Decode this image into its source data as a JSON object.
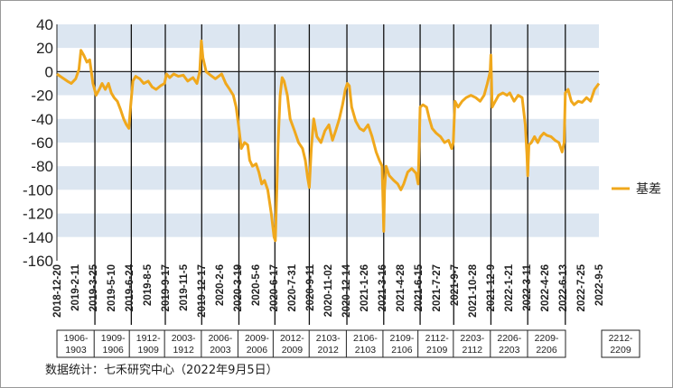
{
  "chart_data": {
    "type": "line",
    "series": [
      {
        "name": "基差",
        "color": "#F0A81C",
        "points": [
          [
            "2018-12-20",
            -2
          ],
          [
            "2019-01-02",
            -5
          ],
          [
            "2019-01-15",
            -8
          ],
          [
            "2019-01-25",
            -10
          ],
          [
            "2019-02-05",
            -6
          ],
          [
            "2019-02-13",
            2
          ],
          [
            "2019-02-18",
            18
          ],
          [
            "2019-02-25",
            14
          ],
          [
            "2019-03-05",
            8
          ],
          [
            "2019-03-12",
            10
          ],
          [
            "2019-03-20",
            -10
          ],
          [
            "2019-03-28",
            -20
          ],
          [
            "2019-04-05",
            -15
          ],
          [
            "2019-04-12",
            -10
          ],
          [
            "2019-04-20",
            -15
          ],
          [
            "2019-04-28",
            -10
          ],
          [
            "2019-05-05",
            -18
          ],
          [
            "2019-05-12",
            -22
          ],
          [
            "2019-05-20",
            -25
          ],
          [
            "2019-05-28",
            -32
          ],
          [
            "2019-06-05",
            -40
          ],
          [
            "2019-06-12",
            -45
          ],
          [
            "2019-06-18",
            -48
          ],
          [
            "2019-06-22",
            -30
          ],
          [
            "2019-06-28",
            -8
          ],
          [
            "2019-07-05",
            -4
          ],
          [
            "2019-07-15",
            -6
          ],
          [
            "2019-07-25",
            -10
          ],
          [
            "2019-08-05",
            -8
          ],
          [
            "2019-08-15",
            -13
          ],
          [
            "2019-08-25",
            -15
          ],
          [
            "2019-09-05",
            -12
          ],
          [
            "2019-09-15",
            -10
          ],
          [
            "2019-09-20",
            -2
          ],
          [
            "2019-09-28",
            -5
          ],
          [
            "2019-10-08",
            -2
          ],
          [
            "2019-10-20",
            -4
          ],
          [
            "2019-11-01",
            -3
          ],
          [
            "2019-11-12",
            -8
          ],
          [
            "2019-11-25",
            -5
          ],
          [
            "2019-12-05",
            -10
          ],
          [
            "2019-12-12",
            0
          ],
          [
            "2019-12-16",
            26
          ],
          [
            "2019-12-20",
            12
          ],
          [
            "2019-12-28",
            0
          ],
          [
            "2020-01-08",
            -3
          ],
          [
            "2020-01-20",
            -6
          ],
          [
            "2020-02-05",
            -2
          ],
          [
            "2020-02-15",
            -10
          ],
          [
            "2020-02-25",
            -15
          ],
          [
            "2020-03-05",
            -20
          ],
          [
            "2020-03-12",
            -30
          ],
          [
            "2020-03-18",
            -45
          ],
          [
            "2020-03-25",
            -65
          ],
          [
            "2020-04-02",
            -60
          ],
          [
            "2020-04-10",
            -62
          ],
          [
            "2020-04-15",
            -75
          ],
          [
            "2020-04-22",
            -80
          ],
          [
            "2020-05-01",
            -78
          ],
          [
            "2020-05-08",
            -85
          ],
          [
            "2020-05-15",
            -95
          ],
          [
            "2020-05-22",
            -92
          ],
          [
            "2020-05-30",
            -100
          ],
          [
            "2020-06-08",
            -120
          ],
          [
            "2020-06-15",
            -140
          ],
          [
            "2020-06-18",
            -143
          ],
          [
            "2020-06-25",
            -60
          ],
          [
            "2020-06-30",
            -20
          ],
          [
            "2020-07-05",
            -5
          ],
          [
            "2020-07-10",
            -8
          ],
          [
            "2020-07-18",
            -20
          ],
          [
            "2020-07-25",
            -40
          ],
          [
            "2020-08-05",
            -50
          ],
          [
            "2020-08-15",
            -60
          ],
          [
            "2020-08-25",
            -65
          ],
          [
            "2020-09-01",
            -75
          ],
          [
            "2020-09-07",
            -90
          ],
          [
            "2020-09-11",
            -98
          ],
          [
            "2020-09-16",
            -65
          ],
          [
            "2020-09-22",
            -40
          ],
          [
            "2020-09-30",
            -55
          ],
          [
            "2020-10-10",
            -60
          ],
          [
            "2020-10-20",
            -50
          ],
          [
            "2020-10-30",
            -45
          ],
          [
            "2020-11-08",
            -58
          ],
          [
            "2020-11-16",
            -50
          ],
          [
            "2020-11-25",
            -40
          ],
          [
            "2020-12-03",
            -28
          ],
          [
            "2020-12-10",
            -15
          ],
          [
            "2020-12-15",
            -10
          ],
          [
            "2020-12-20",
            -12
          ],
          [
            "2020-12-26",
            -30
          ],
          [
            "2021-01-05",
            -42
          ],
          [
            "2021-01-15",
            -48
          ],
          [
            "2021-01-25",
            -50
          ],
          [
            "2021-02-05",
            -45
          ],
          [
            "2021-02-15",
            -55
          ],
          [
            "2021-02-25",
            -68
          ],
          [
            "2021-03-05",
            -75
          ],
          [
            "2021-03-12",
            -80
          ],
          [
            "2021-03-16",
            -135
          ],
          [
            "2021-03-18",
            -100
          ],
          [
            "2021-03-22",
            -80
          ],
          [
            "2021-03-30",
            -88
          ],
          [
            "2021-04-10",
            -92
          ],
          [
            "2021-04-20",
            -95
          ],
          [
            "2021-04-28",
            -100
          ],
          [
            "2021-05-05",
            -95
          ],
          [
            "2021-05-15",
            -85
          ],
          [
            "2021-05-25",
            -82
          ],
          [
            "2021-06-05",
            -86
          ],
          [
            "2021-06-10",
            -95
          ],
          [
            "2021-06-15",
            -30
          ],
          [
            "2021-06-22",
            -28
          ],
          [
            "2021-07-01",
            -30
          ],
          [
            "2021-07-08",
            -40
          ],
          [
            "2021-07-15",
            -48
          ],
          [
            "2021-07-25",
            -52
          ],
          [
            "2021-08-05",
            -55
          ],
          [
            "2021-08-15",
            -60
          ],
          [
            "2021-08-25",
            -58
          ],
          [
            "2021-09-02",
            -65
          ],
          [
            "2021-09-06",
            -60
          ],
          [
            "2021-09-10",
            -25
          ],
          [
            "2021-09-18",
            -30
          ],
          [
            "2021-09-28",
            -25
          ],
          [
            "2021-10-08",
            -22
          ],
          [
            "2021-10-20",
            -20
          ],
          [
            "2021-11-01",
            -22
          ],
          [
            "2021-11-12",
            -25
          ],
          [
            "2021-11-22",
            -20
          ],
          [
            "2021-11-30",
            -10
          ],
          [
            "2021-12-07",
            0
          ],
          [
            "2021-12-09",
            14
          ],
          [
            "2021-12-12",
            -30
          ],
          [
            "2021-12-20",
            -25
          ],
          [
            "2021-12-28",
            -20
          ],
          [
            "2022-01-08",
            -18
          ],
          [
            "2022-01-18",
            -20
          ],
          [
            "2022-01-25",
            -18
          ],
          [
            "2022-02-05",
            -25
          ],
          [
            "2022-02-15",
            -20
          ],
          [
            "2022-02-25",
            -22
          ],
          [
            "2022-03-05",
            -45
          ],
          [
            "2022-03-09",
            -70
          ],
          [
            "2022-03-11",
            -88
          ],
          [
            "2022-03-14",
            -62
          ],
          [
            "2022-03-20",
            -60
          ],
          [
            "2022-03-28",
            -55
          ],
          [
            "2022-04-05",
            -60
          ],
          [
            "2022-04-12",
            -55
          ],
          [
            "2022-04-20",
            -52
          ],
          [
            "2022-04-28",
            -54
          ],
          [
            "2022-05-08",
            -55
          ],
          [
            "2022-05-18",
            -58
          ],
          [
            "2022-05-28",
            -60
          ],
          [
            "2022-06-05",
            -68
          ],
          [
            "2022-06-10",
            -60
          ],
          [
            "2022-06-13",
            -18
          ],
          [
            "2022-06-20",
            -15
          ],
          [
            "2022-06-28",
            -25
          ],
          [
            "2022-07-05",
            -28
          ],
          [
            "2022-07-15",
            -25
          ],
          [
            "2022-07-25",
            -26
          ],
          [
            "2022-08-05",
            -22
          ],
          [
            "2022-08-15",
            -25
          ],
          [
            "2022-08-25",
            -15
          ],
          [
            "2022-09-05",
            -10
          ]
        ]
      }
    ],
    "y_axis": {
      "min": -160,
      "max": 40,
      "ticks": [
        40,
        20,
        0,
        -20,
        -40,
        -60,
        -80,
        -100,
        -120,
        -140,
        -160
      ]
    },
    "x_ticks": [
      "2018-12-20",
      "2019-2-11",
      "2019-3-25",
      "2019-5-10",
      "2019-6-24",
      "2019-8-5",
      "2019-9-17",
      "2019-11-5",
      "2019-12-17",
      "2020-2-6",
      "2020-3-19",
      "2020-5-6",
      "2020-6-17",
      "2020-7-31",
      "2020-9-11",
      "2020-11-02",
      "2020-12-14",
      "2021-1-26",
      "2021-3-16",
      "2021-4-28",
      "2021-6-15",
      "2021-7-27",
      "2021-9-7",
      "2021-10-28",
      "2021-12-9",
      "2022-1-21",
      "2022-3-11",
      "2022-4-26",
      "2022-6-13",
      "2022-7-25",
      "2022-9-5"
    ],
    "x_range": [
      "2018-12-20",
      "2022-09-05"
    ],
    "contracts": [
      {
        "label": "1906-1903",
        "start": "2018-12-20",
        "end": "2019-03-25"
      },
      {
        "label": "1909-1906",
        "start": "2019-03-25",
        "end": "2019-06-24"
      },
      {
        "label": "1912-1909",
        "start": "2019-06-24",
        "end": "2019-09-17"
      },
      {
        "label": "2003-1912",
        "start": "2019-09-17",
        "end": "2019-12-17"
      },
      {
        "label": "2006-2003",
        "start": "2019-12-17",
        "end": "2020-03-19"
      },
      {
        "label": "2009-2006",
        "start": "2020-03-19",
        "end": "2020-06-17"
      },
      {
        "label": "2012-2009",
        "start": "2020-06-17",
        "end": "2020-09-11"
      },
      {
        "label": "2103-2012",
        "start": "2020-09-11",
        "end": "2020-12-14"
      },
      {
        "label": "2106-2103",
        "start": "2020-12-14",
        "end": "2021-03-16"
      },
      {
        "label": "2109-2106",
        "start": "2021-03-16",
        "end": "2021-06-15"
      },
      {
        "label": "2112-2109",
        "start": "2021-06-15",
        "end": "2021-09-07"
      },
      {
        "label": "2203-2112",
        "start": "2021-09-07",
        "end": "2021-12-09"
      },
      {
        "label": "2206-2203",
        "start": "2021-12-09",
        "end": "2022-03-11"
      },
      {
        "label": "2209-2206",
        "start": "2022-03-11",
        "end": "2022-06-13"
      },
      {
        "label": "2212-2209",
        "start": "2022-06-13",
        "end": "2022-09-05"
      }
    ],
    "band_colors": [
      "#DCE6F1",
      "#FFFFFF"
    ],
    "legend": {
      "label": "基差",
      "position": "right"
    },
    "grid": false
  },
  "source_note": "数据统计：七禾研究中心（2022年9月5日）"
}
